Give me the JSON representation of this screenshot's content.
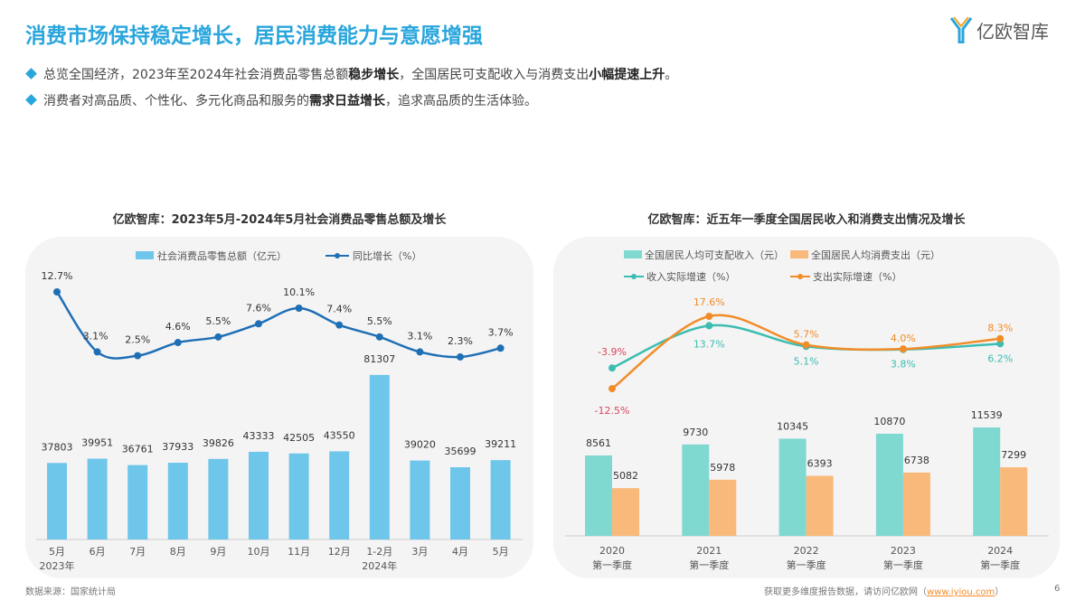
{
  "header": {
    "title": "消费市场保持稳定增长，居民消费能力与意愿增强",
    "logo_text": "亿欧智库"
  },
  "bullets": [
    {
      "pre": "总览全国经济，2023年至2024年社会消费品零售总额",
      "b1": "稳步增长",
      "mid": "，全国居民可支配收入与消费支出",
      "b2": "小幅提速上升",
      "post": "。"
    },
    {
      "pre": "消费者对高品质、个性化、多元化商品和服务的",
      "b1": "需求日益增长",
      "mid": "，追求高品质的生活体验。",
      "b2": "",
      "post": ""
    }
  ],
  "chart_data": [
    {
      "type": "bar+line",
      "title": "亿欧智库：2023年5月-2024年5月社会消费品零售总额及增长",
      "categories": [
        "5月",
        "6月",
        "7月",
        "8月",
        "9月",
        "10月",
        "11月",
        "12月",
        "1-2月",
        "3月",
        "4月",
        "5月"
      ],
      "year_labels": [
        {
          "index": 0,
          "label": "2023年"
        },
        {
          "index": 8,
          "label": "2024年"
        }
      ],
      "series": [
        {
          "name": "社会消费品零售总额（亿元）",
          "type": "bar",
          "color": "#6ec6ea",
          "values": [
            37803,
            39951,
            36761,
            37933,
            39826,
            43333,
            42505,
            43550,
            81307,
            39020,
            35699,
            39211
          ]
        },
        {
          "name": "同比增长（%）",
          "type": "line",
          "color": "#1f6fb5",
          "values": [
            12.7,
            3.1,
            2.5,
            4.6,
            5.5,
            7.6,
            10.1,
            7.4,
            5.5,
            3.1,
            2.3,
            3.7
          ],
          "labels": [
            "12.7%",
            "3.1%",
            "2.5%",
            "4.6%",
            "5.5%",
            "7.6%",
            "10.1%",
            "7.4%",
            "5.5%",
            "3.1%",
            "2.3%",
            "3.7%"
          ]
        }
      ],
      "legend": "top"
    },
    {
      "type": "bar+line",
      "title": "亿欧智库：近五年一季度全国居民收入和消费支出情况及增长",
      "categories": [
        "2020",
        "2021",
        "2022",
        "2023",
        "2024"
      ],
      "category_sublabel": "第一季度",
      "series": [
        {
          "name": "全国居民人均可支配收入（元）",
          "type": "bar",
          "color": "#80d9d1",
          "values": [
            8561,
            9730,
            10345,
            10870,
            11539
          ]
        },
        {
          "name": "全国居民人均消费支出（元）",
          "type": "bar",
          "color": "#f9b97a",
          "values": [
            5082,
            5978,
            6393,
            6738,
            7299
          ]
        },
        {
          "name": "收入实际增速（%）",
          "type": "line",
          "color": "#3bbdb1",
          "values": [
            -3.9,
            13.7,
            5.1,
            3.8,
            6.2
          ],
          "labels": [
            "-3.9%",
            "13.7%",
            "5.1%",
            "3.8%",
            "6.2%"
          ]
        },
        {
          "name": "支出实际增速（%）",
          "type": "line",
          "color": "#f28c28",
          "values": [
            -12.5,
            17.6,
            5.7,
            4.0,
            8.3
          ],
          "labels": [
            "-12.5%",
            "17.6%",
            "5.7%",
            "4.0%",
            "8.3%"
          ]
        }
      ],
      "negative_label_color": "#d9455f",
      "legend": "top"
    }
  ],
  "footer": {
    "source": "数据来源：国家统计局",
    "cta": "获取更多维度报告数据，请访问亿欧网（",
    "link": "www.iyiou.com",
    "cta_end": "）",
    "page": "6"
  }
}
